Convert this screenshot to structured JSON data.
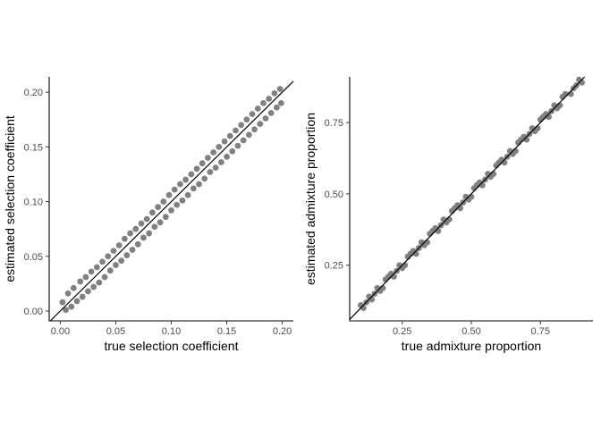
{
  "chart_data": [
    {
      "type": "scatter",
      "xlabel": "true selection coefficient",
      "ylabel": "estimated selection coefficient",
      "xlim": [
        -0.01,
        0.21
      ],
      "ylim": [
        -0.009,
        0.214
      ],
      "xticks": [
        0.0,
        0.05,
        0.1,
        0.15,
        0.2
      ],
      "xtick_labels": [
        "0.00",
        "0.05",
        "0.10",
        "0.15",
        "0.20"
      ],
      "yticks": [
        0.0,
        0.05,
        0.1,
        0.15,
        0.2
      ],
      "ytick_labels": [
        "0.00",
        "0.05",
        "0.10",
        "0.15",
        "0.20"
      ],
      "reference_line": "y = x",
      "point_color": "#808080",
      "line_color": "#000000",
      "grid": false,
      "points": [
        [
          0.002,
          0.008
        ],
        [
          0.005,
          0.001
        ],
        [
          0.007,
          0.016
        ],
        [
          0.01,
          0.004
        ],
        [
          0.012,
          0.021
        ],
        [
          0.015,
          0.009
        ],
        [
          0.018,
          0.027
        ],
        [
          0.02,
          0.013
        ],
        [
          0.023,
          0.031
        ],
        [
          0.025,
          0.018
        ],
        [
          0.028,
          0.036
        ],
        [
          0.03,
          0.022
        ],
        [
          0.033,
          0.04
        ],
        [
          0.035,
          0.026
        ],
        [
          0.038,
          0.045
        ],
        [
          0.04,
          0.031
        ],
        [
          0.043,
          0.05
        ],
        [
          0.045,
          0.037
        ],
        [
          0.048,
          0.055
        ],
        [
          0.05,
          0.042
        ],
        [
          0.053,
          0.06
        ],
        [
          0.055,
          0.046
        ],
        [
          0.058,
          0.066
        ],
        [
          0.06,
          0.051
        ],
        [
          0.063,
          0.071
        ],
        [
          0.065,
          0.056
        ],
        [
          0.068,
          0.075
        ],
        [
          0.07,
          0.061
        ],
        [
          0.073,
          0.08
        ],
        [
          0.075,
          0.067
        ],
        [
          0.078,
          0.084
        ],
        [
          0.08,
          0.071
        ],
        [
          0.083,
          0.09
        ],
        [
          0.085,
          0.077
        ],
        [
          0.088,
          0.095
        ],
        [
          0.09,
          0.081
        ],
        [
          0.093,
          0.1
        ],
        [
          0.095,
          0.086
        ],
        [
          0.098,
          0.106
        ],
        [
          0.1,
          0.092
        ],
        [
          0.103,
          0.111
        ],
        [
          0.105,
          0.097
        ],
        [
          0.108,
          0.116
        ],
        [
          0.11,
          0.101
        ],
        [
          0.113,
          0.12
        ],
        [
          0.115,
          0.106
        ],
        [
          0.118,
          0.125
        ],
        [
          0.12,
          0.112
        ],
        [
          0.123,
          0.13
        ],
        [
          0.125,
          0.116
        ],
        [
          0.128,
          0.135
        ],
        [
          0.13,
          0.121
        ],
        [
          0.133,
          0.14
        ],
        [
          0.135,
          0.127
        ],
        [
          0.138,
          0.145
        ],
        [
          0.14,
          0.131
        ],
        [
          0.143,
          0.15
        ],
        [
          0.145,
          0.136
        ],
        [
          0.148,
          0.155
        ],
        [
          0.15,
          0.141
        ],
        [
          0.153,
          0.16
        ],
        [
          0.155,
          0.146
        ],
        [
          0.158,
          0.165
        ],
        [
          0.16,
          0.151
        ],
        [
          0.163,
          0.17
        ],
        [
          0.165,
          0.156
        ],
        [
          0.168,
          0.175
        ],
        [
          0.17,
          0.161
        ],
        [
          0.173,
          0.18
        ],
        [
          0.175,
          0.166
        ],
        [
          0.178,
          0.185
        ],
        [
          0.18,
          0.171
        ],
        [
          0.183,
          0.19
        ],
        [
          0.185,
          0.176
        ],
        [
          0.188,
          0.194
        ],
        [
          0.19,
          0.181
        ],
        [
          0.193,
          0.199
        ],
        [
          0.195,
          0.186
        ],
        [
          0.198,
          0.203
        ],
        [
          0.199,
          0.19
        ]
      ]
    },
    {
      "type": "scatter",
      "xlabel": "true admixture proportion",
      "ylabel": "estimated admixture proportion",
      "xlim": [
        0.06,
        0.94
      ],
      "ylim": [
        0.055,
        0.91
      ],
      "xticks": [
        0.25,
        0.5,
        0.75
      ],
      "xtick_labels": [
        "0.25",
        "0.50",
        "0.75"
      ],
      "yticks": [
        0.25,
        0.5,
        0.75
      ],
      "ytick_labels": [
        "0.25",
        "0.50",
        "0.75"
      ],
      "reference_line": "y = x",
      "point_color": "#808080",
      "line_color": "#000000",
      "grid": false,
      "points": [
        [
          0.1,
          0.11
        ],
        [
          0.12,
          0.12
        ],
        [
          0.14,
          0.13
        ],
        [
          0.16,
          0.17
        ],
        [
          0.18,
          0.17
        ],
        [
          0.2,
          0.21
        ],
        [
          0.22,
          0.21
        ],
        [
          0.24,
          0.25
        ],
        [
          0.26,
          0.25
        ],
        [
          0.28,
          0.29
        ],
        [
          0.3,
          0.29
        ],
        [
          0.32,
          0.33
        ],
        [
          0.34,
          0.33
        ],
        [
          0.36,
          0.37
        ],
        [
          0.38,
          0.37
        ],
        [
          0.4,
          0.41
        ],
        [
          0.42,
          0.41
        ],
        [
          0.44,
          0.45
        ],
        [
          0.46,
          0.45
        ],
        [
          0.48,
          0.49
        ],
        [
          0.5,
          0.49
        ],
        [
          0.52,
          0.53
        ],
        [
          0.54,
          0.53
        ],
        [
          0.56,
          0.57
        ],
        [
          0.58,
          0.57
        ],
        [
          0.6,
          0.61
        ],
        [
          0.62,
          0.61
        ],
        [
          0.64,
          0.65
        ],
        [
          0.66,
          0.65
        ],
        [
          0.68,
          0.69
        ],
        [
          0.7,
          0.69
        ],
        [
          0.72,
          0.73
        ],
        [
          0.74,
          0.73
        ],
        [
          0.76,
          0.77
        ],
        [
          0.78,
          0.77
        ],
        [
          0.8,
          0.81
        ],
        [
          0.82,
          0.81
        ],
        [
          0.84,
          0.85
        ],
        [
          0.86,
          0.85
        ],
        [
          0.88,
          0.88
        ],
        [
          0.9,
          0.89
        ],
        [
          0.11,
          0.1
        ],
        [
          0.15,
          0.15
        ],
        [
          0.19,
          0.2
        ],
        [
          0.23,
          0.23
        ],
        [
          0.27,
          0.28
        ],
        [
          0.31,
          0.31
        ],
        [
          0.35,
          0.36
        ],
        [
          0.39,
          0.39
        ],
        [
          0.43,
          0.44
        ],
        [
          0.47,
          0.47
        ],
        [
          0.51,
          0.52
        ],
        [
          0.55,
          0.55
        ],
        [
          0.59,
          0.6
        ],
        [
          0.63,
          0.63
        ],
        [
          0.67,
          0.68
        ],
        [
          0.71,
          0.71
        ],
        [
          0.75,
          0.76
        ],
        [
          0.79,
          0.79
        ],
        [
          0.83,
          0.84
        ],
        [
          0.87,
          0.87
        ],
        [
          0.89,
          0.9
        ],
        [
          0.13,
          0.14
        ],
        [
          0.17,
          0.16
        ],
        [
          0.21,
          0.22
        ],
        [
          0.25,
          0.24
        ],
        [
          0.29,
          0.3
        ],
        [
          0.33,
          0.32
        ],
        [
          0.37,
          0.38
        ],
        [
          0.41,
          0.4
        ],
        [
          0.45,
          0.46
        ],
        [
          0.49,
          0.48
        ],
        [
          0.53,
          0.54
        ],
        [
          0.57,
          0.56
        ],
        [
          0.61,
          0.62
        ],
        [
          0.65,
          0.64
        ],
        [
          0.69,
          0.7
        ],
        [
          0.73,
          0.72
        ],
        [
          0.77,
          0.78
        ],
        [
          0.81,
          0.8
        ]
      ]
    }
  ]
}
